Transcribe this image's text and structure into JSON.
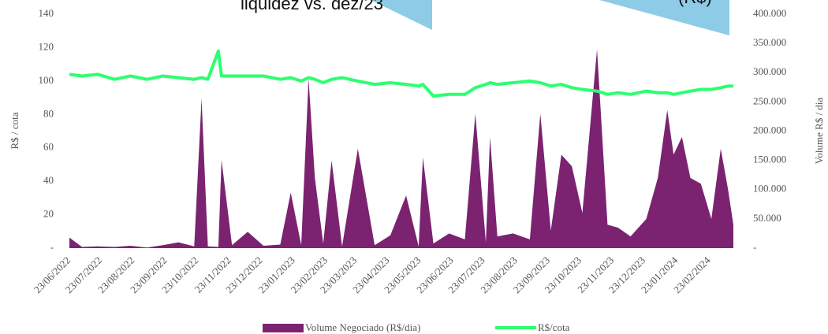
{
  "chart_data": {
    "type": "combo",
    "annotations": [
      "liquidez vs. dez/23",
      "(R$)"
    ],
    "y_label": "R$ / cota",
    "y2_label": "Volume R$ / dia",
    "x": [
      "23/06/2022",
      "05/07/2022",
      "20/07/2022",
      "05/08/2022",
      "20/08/2022",
      "05/09/2022",
      "20/09/2022",
      "05/10/2022",
      "20/10/2022",
      "27/10/2022",
      "02/11/2022",
      "12/11/2022",
      "15/11/2022",
      "25/11/2022",
      "10/12/2022",
      "25/12/2022",
      "10/01/2023",
      "20/01/2023",
      "30/01/2023",
      "06/02/2023",
      "12/02/2023",
      "20/02/2023",
      "28/02/2023",
      "10/03/2023",
      "25/03/2023",
      "10/04/2023",
      "25/04/2023",
      "10/05/2023",
      "22/05/2023",
      "26/05/2023",
      "05/06/2023",
      "20/06/2023",
      "05/07/2023",
      "15/07/2023",
      "25/07/2023",
      "29/07/2023",
      "05/08/2023",
      "20/08/2023",
      "05/09/2023",
      "15/09/2023",
      "25/09/2023",
      "05/10/2023",
      "15/10/2023",
      "25/10/2023",
      "08/11/2023",
      "18/11/2023",
      "28/11/2023",
      "10/12/2023",
      "25/12/2023",
      "05/01/2024",
      "14/01/2024",
      "20/01/2024",
      "28/01/2024",
      "05/02/2024",
      "15/02/2024",
      "25/02/2024",
      "05/03/2024",
      "12/03/2024",
      "17/03/2024"
    ],
    "xlim": [
      "23/06/2022",
      "17/03/2024"
    ],
    "xticks": [
      "23/06/2022",
      "23/07/2022",
      "23/08/2022",
      "23/09/2022",
      "23/10/2022",
      "23/11/2022",
      "23/12/2022",
      "23/01/2023",
      "23/02/2023",
      "23/03/2023",
      "23/04/2023",
      "23/05/2023",
      "23/06/2023",
      "23/07/2023",
      "23/08/2023",
      "23/09/2023",
      "23/10/2023",
      "23/11/2023",
      "23/12/2023",
      "23/01/2024",
      "23/02/2024"
    ],
    "series": [
      {
        "name": "Volume Negociado (R$/dia)",
        "type": "area",
        "axis": "y2",
        "color": "#7b2371",
        "values": [
          18000,
          2000,
          3000,
          2000,
          4000,
          1000,
          5000,
          10000,
          3000,
          256000,
          3000,
          2000,
          151000,
          5000,
          28000,
          4000,
          6000,
          95000,
          5000,
          290000,
          120000,
          8000,
          150000,
          3000,
          170000,
          5000,
          22000,
          90000,
          3000,
          155000,
          8000,
          25000,
          15000,
          230000,
          10000,
          190000,
          20000,
          25000,
          15000,
          230000,
          30000,
          160000,
          140000,
          60000,
          340000,
          40000,
          35000,
          20000,
          50000,
          120000,
          236000,
          160000,
          190000,
          120000,
          110000,
          50000,
          170000,
          100000,
          40000
        ]
      },
      {
        "name": "R$/cota",
        "type": "line",
        "color": "#2cff70",
        "values": [
          104,
          103,
          104,
          101,
          103,
          101,
          103,
          102,
          101,
          102,
          101,
          118,
          103,
          103,
          103,
          103,
          101,
          102,
          100,
          102,
          101,
          99,
          101,
          102,
          100,
          98,
          99,
          98,
          97,
          98,
          91,
          92,
          92,
          96,
          98,
          99,
          98,
          99,
          100,
          99,
          97,
          98,
          96,
          95,
          94,
          92,
          93,
          92,
          94,
          93,
          93,
          92,
          93,
          94,
          95,
          95,
          96,
          97,
          97
        ]
      }
    ],
    "ylim": [
      0,
      140
    ],
    "yticks": [
      {
        "value": 0,
        "label": "-"
      },
      20,
      40,
      60,
      80,
      100,
      120,
      140
    ],
    "y2lim": [
      0,
      400000
    ],
    "y2ticks": [
      {
        "value": 0,
        "label": "-"
      },
      {
        "value": 50000,
        "label": "50.000"
      },
      {
        "value": 100000,
        "label": "100.000"
      },
      {
        "value": 150000,
        "label": "150.000"
      },
      {
        "value": 200000,
        "label": "200.000"
      },
      {
        "value": 250000,
        "label": "250.000"
      },
      {
        "value": 300000,
        "label": "300.000"
      },
      {
        "value": 350000,
        "label": "350.000"
      },
      {
        "value": 400000,
        "label": "400.000"
      }
    ],
    "legend": "bottom"
  }
}
